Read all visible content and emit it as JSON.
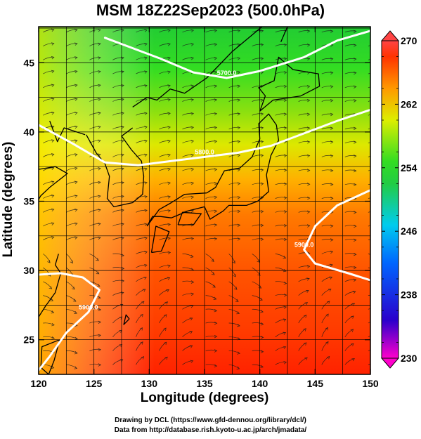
{
  "title": "MSM 18Z22Sep2023 (500.0hPa)",
  "xlabel": "Longitude (degrees)",
  "ylabel": "Latitude  (degrees)",
  "credit_line1": "Drawing by DCL (https://www.gfd-dennou.org/library/dcl/)",
  "credit_line2": "Data from http://database.rish.kyoto-u.ac.jp/arch/jmadata/",
  "chart_data": {
    "type": "heatmap",
    "title": "MSM 18Z22Sep2023 (500.0hPa)",
    "xlabel": "Longitude (degrees)",
    "ylabel": "Latitude  (degrees)",
    "xlim": [
      120,
      150
    ],
    "ylim": [
      22.5,
      47.6
    ],
    "xticks": [
      "120",
      "125",
      "130",
      "135",
      "140",
      "145",
      "150"
    ],
    "yticks": [
      "25",
      "30",
      "35",
      "40",
      "45"
    ],
    "grid": true,
    "colorbar": {
      "min": 230,
      "max": 270,
      "tick_labels": [
        "270",
        "262",
        "254",
        "246",
        "238",
        "230"
      ],
      "colors": [
        "#ff00cc",
        "#2200cc",
        "#0066ff",
        "#00ccee",
        "#22cc44",
        "#33dd22",
        "#ddee00",
        "#ff9900",
        "#ff3300",
        "#ff4444"
      ]
    },
    "contours": [
      {
        "label": "5700.0",
        "color": "#ffffff",
        "points": [
          [
            126,
            46.8
          ],
          [
            128,
            46.2
          ],
          [
            131,
            45.3
          ],
          [
            134,
            44.3
          ],
          [
            137,
            43.9
          ],
          [
            140,
            44.4
          ],
          [
            144,
            45.4
          ],
          [
            147,
            46.6
          ],
          [
            150,
            47.3
          ]
        ]
      },
      {
        "label": "5800.0",
        "color": "#ffffff",
        "points": [
          [
            120,
            40.5
          ],
          [
            123,
            39.2
          ],
          [
            126,
            37.8
          ],
          [
            129,
            37.6
          ],
          [
            132,
            37.9
          ],
          [
            135,
            38.2
          ],
          [
            138,
            38.5
          ],
          [
            141,
            39.0
          ],
          [
            144,
            39.9
          ],
          [
            147,
            40.8
          ],
          [
            150,
            41.6
          ]
        ]
      },
      {
        "label": "5900.0",
        "color": "#ffffff",
        "points": [
          [
            150,
            35.8
          ],
          [
            147,
            34.7
          ],
          [
            145,
            33.2
          ],
          [
            144,
            31.5
          ],
          [
            145,
            30.5
          ],
          [
            148,
            29.8
          ],
          [
            150,
            29.3
          ]
        ]
      },
      {
        "label": "5900.0",
        "color": "#ffffff",
        "points": [
          [
            120,
            29.7
          ],
          [
            122,
            29.8
          ],
          [
            124,
            29.5
          ],
          [
            125.5,
            28.6
          ],
          [
            124.5,
            27.0
          ],
          [
            122.5,
            25.5
          ],
          [
            121,
            23.8
          ],
          [
            120,
            22.8
          ]
        ]
      }
    ]
  }
}
